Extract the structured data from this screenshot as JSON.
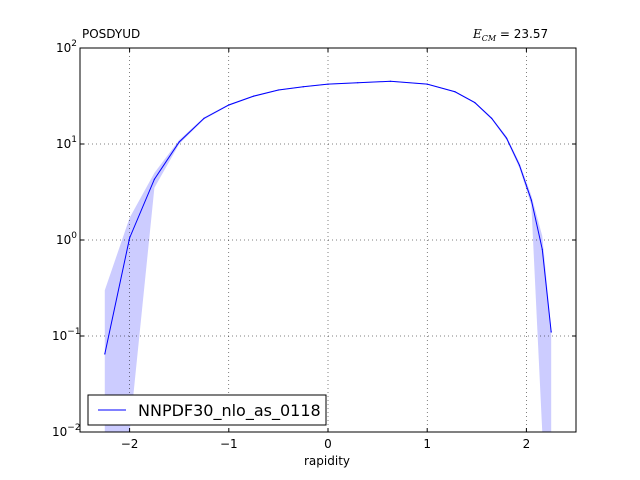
{
  "chart_data": {
    "type": "line",
    "title_left": "POSDYUD",
    "title_right_symbol": "E",
    "title_right_subscript": "CM",
    "title_right_value": " = 23.57",
    "xlabel": "rapidity",
    "ylabel": "",
    "y_scale": "log",
    "xlim": [
      -2.5,
      2.5
    ],
    "ylim": [
      0.01,
      100
    ],
    "grid": true,
    "legend_position": "lower-left",
    "x_ticks": [
      -2,
      -1,
      0,
      1,
      2
    ],
    "x_tick_labels": [
      "−2",
      "−1",
      "0",
      "1",
      "2"
    ],
    "y_ticks": [
      {
        "value": 0.01,
        "base": "10",
        "exp": "-2"
      },
      {
        "value": 0.1,
        "base": "10",
        "exp": "-1"
      },
      {
        "value": 1,
        "base": "10",
        "exp": "0"
      },
      {
        "value": 10,
        "base": "10",
        "exp": "1"
      },
      {
        "value": 100,
        "base": "10",
        "exp": "2"
      }
    ],
    "series": [
      {
        "name": "NNPDF30_nlo_as_0118",
        "color": "#0000ff",
        "band_color": "#ccccff",
        "x": [
          -2.25,
          -2.0,
          -1.75,
          -1.5,
          -1.25,
          -1.0,
          -0.75,
          -0.5,
          -0.25,
          0.0,
          0.3,
          0.63,
          1.0,
          1.28,
          1.48,
          1.65,
          1.8,
          1.93,
          2.05,
          2.16,
          2.25
        ],
        "y": [
          0.065,
          1.05,
          4.3,
          10.5,
          18.5,
          25.5,
          31.5,
          36.5,
          39.5,
          42.0,
          43.5,
          45.0,
          42.0,
          35.0,
          27.0,
          18.5,
          11.5,
          6.0,
          2.6,
          0.8,
          0.11
        ],
        "y_low": [
          0.01,
          0.01,
          3.5,
          10.0,
          18.0,
          25.0,
          31.0,
          36.0,
          39.0,
          41.5,
          43.0,
          44.5,
          41.5,
          34.5,
          26.5,
          18.0,
          11.0,
          5.6,
          2.3,
          0.01,
          0.01
        ],
        "y_high": [
          0.3,
          1.7,
          5.0,
          11.0,
          19.0,
          26.0,
          32.0,
          37.0,
          40.0,
          42.5,
          44.0,
          45.5,
          42.5,
          35.5,
          27.5,
          19.0,
          12.0,
          6.4,
          2.9,
          1.1,
          0.12
        ]
      }
    ]
  }
}
